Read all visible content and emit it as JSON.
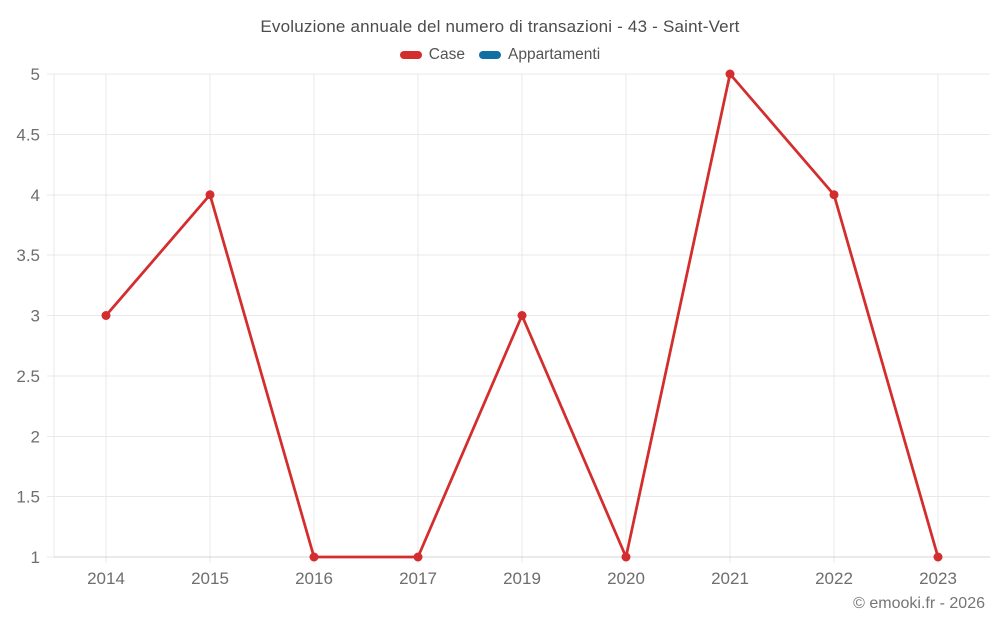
{
  "title": "Evoluzione annuale del numero di transazioni - 43 - Saint-Vert",
  "legend": {
    "items": [
      {
        "label": "Case",
        "color": "#d32d2d"
      },
      {
        "label": "Appartamenti",
        "color": "#1170a3"
      }
    ]
  },
  "watermark": "© emooki.fr - 2026",
  "chart_data": {
    "type": "line",
    "title": "Evoluzione annuale del numero di transazioni - 43 - Saint-Vert",
    "categories": [
      "2014",
      "2015",
      "2016",
      "2017",
      "2019",
      "2020",
      "2021",
      "2022",
      "2023"
    ],
    "series": [
      {
        "name": "Case",
        "color": "#d32d2d",
        "values": [
          3,
          4,
          1,
          1,
          3,
          1,
          5,
          4,
          1
        ]
      },
      {
        "name": "Appartamenti",
        "color": "#1170a3",
        "values": []
      }
    ],
    "xlabel": "",
    "ylabel": "",
    "ylim": [
      1,
      5
    ],
    "ytick_step": 0.5,
    "grid": true,
    "legend_position": "top",
    "axis_text_color": "#6e6e6e",
    "grid_color": "#e9e9e9",
    "axis_line_color": "#d4d4d4",
    "marker_radius": 4.5,
    "line_width": 2.75
  }
}
